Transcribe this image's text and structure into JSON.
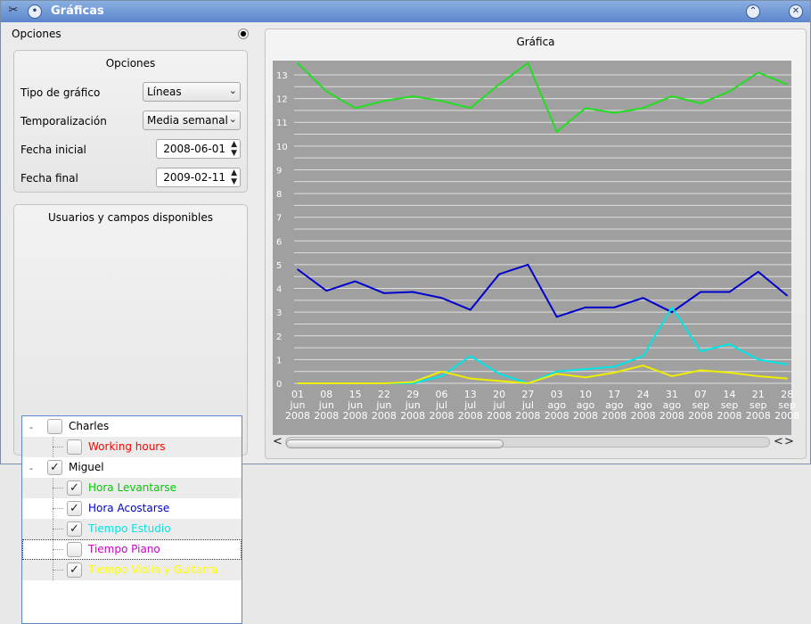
{
  "window": {
    "title": "Gráficas",
    "icons": [
      "tools-icon",
      "menu-circle-icon",
      "maximize-icon",
      "close-icon"
    ]
  },
  "dock": {
    "title": "Opciones",
    "float_icon": "dock-float-icon"
  },
  "options": {
    "group_title": "Opciones",
    "chart_type_label": "Tipo de gráfico",
    "chart_type_value": "Líneas",
    "time_label": "Temporalización",
    "time_value": "Media semanal",
    "start_label": "Fecha inicial",
    "start_value": "2008-06-01",
    "end_label": "Fecha final",
    "end_value": "2009-02-11"
  },
  "users": {
    "group_title": "Usuarios y campos disponibles",
    "tree": [
      {
        "label": "Charles",
        "level": 0,
        "checked": false,
        "color": "#000000",
        "expander": "-"
      },
      {
        "label": "Working hours",
        "level": 1,
        "checked": false,
        "color": "#ff0000"
      },
      {
        "label": "Miguel",
        "level": 0,
        "checked": true,
        "color": "#000000",
        "expander": "-"
      },
      {
        "label": "Hora Levantarse",
        "level": 1,
        "checked": true,
        "color": "#00cc00"
      },
      {
        "label": "Hora Acostarse",
        "level": 1,
        "checked": true,
        "color": "#0000cc"
      },
      {
        "label": "Tiempo Estudio",
        "level": 1,
        "checked": true,
        "color": "#00e5e5"
      },
      {
        "label": "Tiempo Piano",
        "level": 1,
        "checked": false,
        "color": "#cc00cc"
      },
      {
        "label": "Tiempo Violín y Guitarra",
        "level": 1,
        "checked": true,
        "color": "#ffff00"
      }
    ]
  },
  "chart_panel": {
    "title": "Gráfica",
    "scroll_left": "<",
    "scroll_right": ">",
    "scroll_left_end": "<",
    "scroll_position": 0.0,
    "scroll_visible_fraction": 0.45
  },
  "chart_data": {
    "type": "line",
    "title": "",
    "xlabel": "",
    "ylabel": "",
    "ylim": [
      0,
      13
    ],
    "yticks": [
      0,
      0.5,
      1,
      1.5,
      2,
      2.5,
      3,
      3.5,
      4,
      4.5,
      5,
      5.5,
      6,
      6.5,
      7,
      7.5,
      8,
      8.5,
      9,
      9.5,
      10,
      10.5,
      11,
      11.5,
      12,
      12.5,
      13
    ],
    "ytick_labels": [
      "0",
      "1",
      "2",
      "3",
      "4",
      "5",
      "6",
      "7",
      "8",
      "9",
      "10",
      "11",
      "12",
      "13"
    ],
    "grid": true,
    "background": "#a0a0a0",
    "categories": [
      [
        "01",
        "jun",
        "2008"
      ],
      [
        "08",
        "jun",
        "2008"
      ],
      [
        "15",
        "jun",
        "2008"
      ],
      [
        "22",
        "jun",
        "2008"
      ],
      [
        "29",
        "jun",
        "2008"
      ],
      [
        "06",
        "jul",
        "2008"
      ],
      [
        "13",
        "jul",
        "2008"
      ],
      [
        "20",
        "jul",
        "2008"
      ],
      [
        "27",
        "jul",
        "2008"
      ],
      [
        "03",
        "ago",
        "2008"
      ],
      [
        "10",
        "ago",
        "2008"
      ],
      [
        "17",
        "ago",
        "2008"
      ],
      [
        "24",
        "ago",
        "2008"
      ],
      [
        "31",
        "ago",
        "2008"
      ],
      [
        "07",
        "sep",
        "2008"
      ],
      [
        "14",
        "sep",
        "2008"
      ],
      [
        "21",
        "sep",
        "2008"
      ],
      [
        "28",
        "sep",
        "2008"
      ]
    ],
    "series": [
      {
        "color": "#22dd22",
        "values": [
          13.5,
          12.3,
          11.6,
          11.9,
          12.1,
          11.9,
          11.6,
          12.6,
          13.5,
          10.6,
          11.6,
          11.4,
          11.6,
          12.1,
          11.8,
          12.3,
          13.1,
          12.6
        ]
      },
      {
        "color": "#0000cc",
        "values": [
          4.8,
          3.9,
          4.3,
          3.8,
          3.85,
          3.6,
          3.1,
          4.6,
          5.0,
          2.8,
          3.2,
          3.2,
          3.6,
          3.0,
          3.85,
          3.85,
          4.7,
          3.7
        ]
      },
      {
        "color": "#00e5e5",
        "values": [
          0,
          0,
          0,
          0,
          0,
          0.3,
          1.15,
          0.4,
          0.0,
          0.5,
          0.6,
          0.7,
          1.15,
          3.2,
          1.35,
          1.65,
          1.0,
          0.8
        ]
      },
      {
        "color": "#eeee00",
        "values": [
          0,
          0,
          0,
          0,
          0.05,
          0.5,
          0.2,
          0.1,
          0.0,
          0.4,
          0.25,
          0.45,
          0.75,
          0.3,
          0.55,
          0.45,
          0.3,
          0.2
        ]
      }
    ]
  }
}
